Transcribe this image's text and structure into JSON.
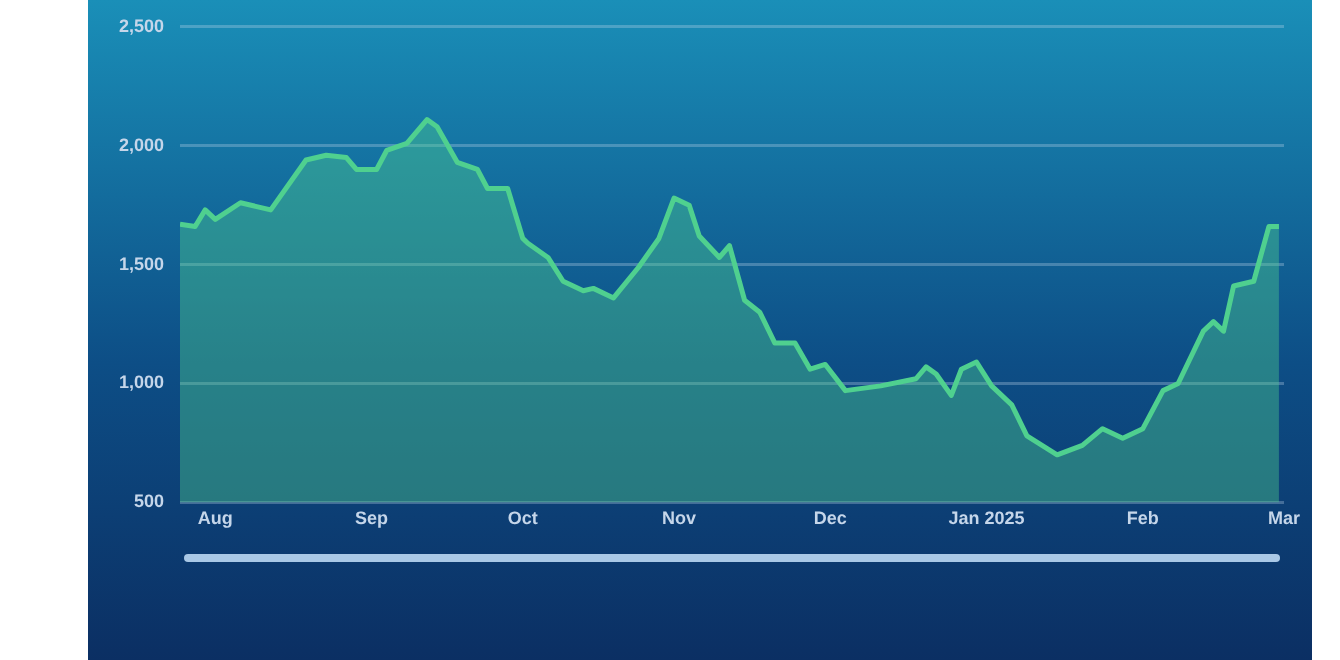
{
  "chart_data": {
    "type": "area",
    "color": "#4fd08f",
    "x": [
      "2024-07-25",
      "2024-07-28",
      "2024-07-30",
      "2024-08-01",
      "2024-08-06",
      "2024-08-12",
      "2024-08-19",
      "2024-08-23",
      "2024-08-27",
      "2024-08-29",
      "2024-09-02",
      "2024-09-04",
      "2024-09-08",
      "2024-09-12",
      "2024-09-14",
      "2024-09-18",
      "2024-09-22",
      "2024-09-24",
      "2024-09-28",
      "2024-10-01",
      "2024-10-02",
      "2024-10-06",
      "2024-10-09",
      "2024-10-13",
      "2024-10-15",
      "2024-10-19",
      "2024-10-24",
      "2024-10-28",
      "2024-10-31",
      "2024-11-03",
      "2024-11-05",
      "2024-11-09",
      "2024-11-11",
      "2024-11-14",
      "2024-11-17",
      "2024-11-20",
      "2024-11-24",
      "2024-11-27",
      "2024-11-30",
      "2024-12-04",
      "2024-12-11",
      "2024-12-18",
      "2024-12-20",
      "2024-12-22",
      "2024-12-25",
      "2024-12-27",
      "2024-12-30",
      "2025-01-02",
      "2025-01-06",
      "2025-01-09",
      "2025-01-15",
      "2025-01-20",
      "2025-01-24",
      "2025-01-28",
      "2025-02-01",
      "2025-02-05",
      "2025-02-08",
      "2025-02-13",
      "2025-02-15",
      "2025-02-17",
      "2025-02-19",
      "2025-02-23",
      "2025-02-26",
      "2025-02-28"
    ],
    "values": [
      1670,
      1660,
      1730,
      1690,
      1760,
      1730,
      1940,
      1960,
      1950,
      1900,
      1900,
      1980,
      2010,
      2110,
      2080,
      1930,
      1900,
      1820,
      1820,
      1610,
      1590,
      1530,
      1430,
      1390,
      1400,
      1360,
      1490,
      1610,
      1780,
      1750,
      1620,
      1530,
      1580,
      1350,
      1300,
      1170,
      1170,
      1060,
      1080,
      970,
      990,
      1020,
      1070,
      1040,
      950,
      1060,
      1090,
      990,
      910,
      780,
      700,
      740,
      810,
      770,
      810,
      970,
      1000,
      1220,
      1260,
      1220,
      1410,
      1430,
      1660,
      1660
    ],
    "xlim": [
      "2024-07-25",
      "2025-03-01"
    ],
    "xticks": [
      {
        "value": "2024-08-01",
        "label": "Aug"
      },
      {
        "value": "2024-09-01",
        "label": "Sep"
      },
      {
        "value": "2024-10-01",
        "label": "Oct"
      },
      {
        "value": "2024-11-01",
        "label": "Nov"
      },
      {
        "value": "2024-12-01",
        "label": "Dec"
      },
      {
        "value": "2025-01-01",
        "label": "Jan 2025"
      },
      {
        "value": "2025-02-01",
        "label": "Feb"
      },
      {
        "value": "2025-03-01",
        "label": "Mar"
      }
    ],
    "ylim": [
      500,
      2500
    ],
    "yticks": [
      {
        "value": 500,
        "label": "500"
      },
      {
        "value": 1000,
        "label": "1,000"
      },
      {
        "value": 1500,
        "label": "1,500"
      },
      {
        "value": 2000,
        "label": "2,000"
      },
      {
        "value": 2500,
        "label": "2,500"
      }
    ],
    "grid": "y",
    "marker": "none",
    "line_style": "solid"
  }
}
